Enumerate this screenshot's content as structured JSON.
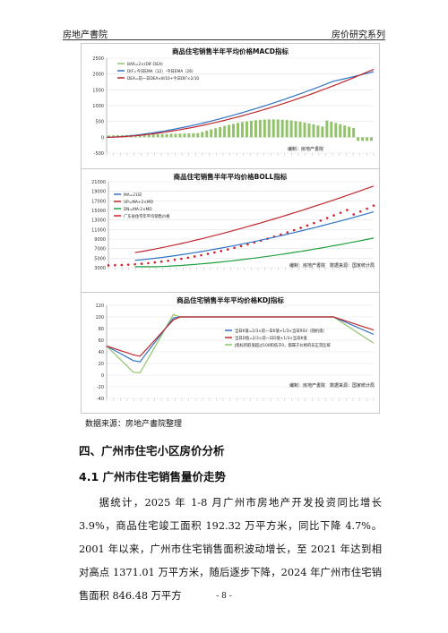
{
  "header": {
    "left": "房地产書院",
    "right": "房价研究系列"
  },
  "charts": {
    "macd": {
      "title": "商品住宅销售半年平均价格MACD指标",
      "legend": [
        "BAR=2×(DIF-DEA)",
        "DIF=今日EMA（12）-今日EMA（26）",
        "DEA=前一日DEA×8/10+今日DIF×2/10"
      ],
      "yticks": [
        "2500",
        "2000",
        "1500",
        "1000",
        "500",
        "0",
        "-500"
      ],
      "note": "编制：房地产書院",
      "colors": {
        "bar": "#92c36a",
        "dif": "#2e73c4",
        "dea": "#c0282d"
      }
    },
    "boll": {
      "title": "商品住宅销售半年平均价格BOLL指标",
      "legend": [
        "MA=21日",
        "UP=MA+2×MD",
        "DN=MA-2×MD",
        "广东省住宅年平均销售价格"
      ],
      "yticks": [
        "21000",
        "19000",
        "17000",
        "15000",
        "13000",
        "11000",
        "9000",
        "7000",
        "5000",
        "3000"
      ],
      "note": "编制：房地产書院　数据来源：国家统计局",
      "colors": {
        "ma": "#2e73c4",
        "up": "#c0282d",
        "dn": "#1fa040",
        "price": "#d21e28"
      }
    },
    "kdj": {
      "title": "商品住宅销售半年平均价格KDJ指标",
      "legend": [
        "当日K值=2/3×前一日K值+1/3×当日RSV（随机值）",
        "当日D值=2/3×前一日D值+1/3×当日K值",
        "J指标的取值超过100和低于0，都属于价格的非正常区域"
      ],
      "yticks": [
        "120",
        "100",
        "80",
        "60",
        "40",
        "20",
        "0",
        "-20",
        "-40"
      ],
      "note": "编制：房地产書院　数据来源：国家统计局",
      "colors": {
        "k": "#2e73c4",
        "d": "#c0282d",
        "j": "#92c36a"
      }
    }
  },
  "source": "数据来源：房地产書院整理",
  "section_title": "四、广州市住宅小区房价分析",
  "subsection_title": "4.1 广州市住宅销售量价走势",
  "paragraph": "据统计，2025 年 1-8 月广州市房地产开发投资同比增长 3.9%，商品住宅竣工面积 192.32 万平方米，同比下降 4.7%。2001 年以来，广州市住宅销售面积波动增长，至 2021 年达到相对高点 1371.01 万平方米，随后逐步下降，2024 年广州市住宅销售面积 846.48 万平方",
  "page_number": "- 8 -"
}
